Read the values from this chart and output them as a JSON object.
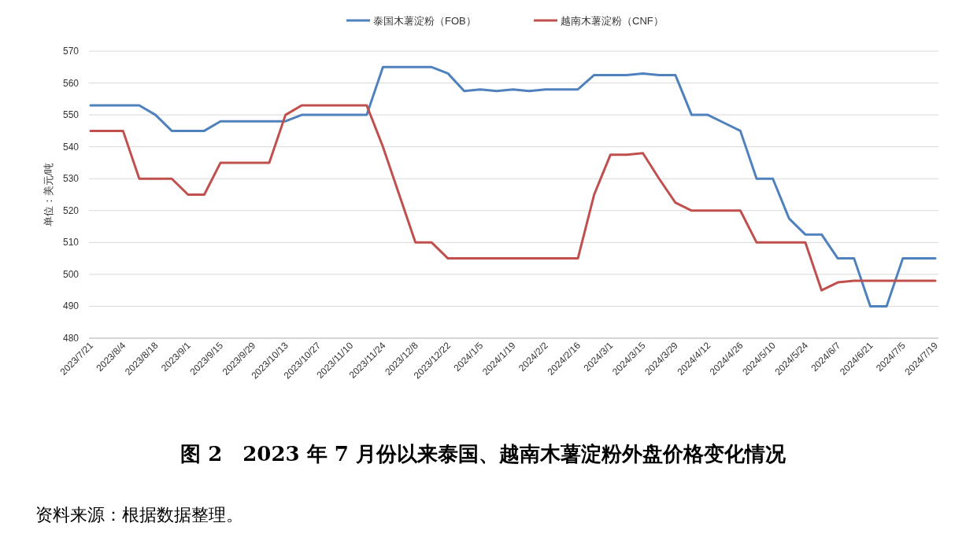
{
  "chart_data": {
    "type": "line",
    "title": "图 2　2023 年 7 月份以来泰国、越南木薯淀粉外盘价格变化情况",
    "ylabel": "单位：美元/吨",
    "annotations": [
      "资料来源：根据数据整理。"
    ],
    "categories": [
      "2023/7/21",
      null,
      "2023/8/4",
      null,
      "2023/8/18",
      null,
      "2023/9/1",
      null,
      "2023/9/15",
      null,
      "2023/9/29",
      null,
      "2023/10/13",
      null,
      "2023/10/27",
      null,
      "2023/11/10",
      null,
      "2023/11/24",
      null,
      "2023/12/8",
      null,
      "2023/12/22",
      null,
      "2024/1/5",
      null,
      "2024/1/19",
      null,
      "2024/2/2",
      null,
      "2024/2/16",
      null,
      "2024/3/1",
      null,
      "2024/3/15",
      null,
      "2024/3/29",
      null,
      "2024/4/12",
      null,
      "2024/4/26",
      null,
      "2024/5/10",
      null,
      "2024/5/24",
      null,
      "2024/6/7",
      null,
      "2024/6/21",
      null,
      "2024/7/5",
      null,
      "2024/7/19"
    ],
    "series": [
      {
        "name": "泰国木薯淀粉（FOB）",
        "color": "#4f81bd",
        "values": [
          553,
          553,
          553,
          553,
          550,
          545,
          545,
          545,
          548,
          548,
          548,
          548,
          548,
          550,
          550,
          550,
          550,
          550,
          565,
          565,
          565,
          565,
          563,
          557.5,
          558,
          557.5,
          558,
          557.5,
          558,
          558,
          558,
          562.5,
          562.5,
          562.5,
          563,
          562.5,
          562.5,
          550,
          550,
          547.5,
          545,
          530,
          530,
          517.5,
          512.5,
          512.5,
          505,
          505,
          490,
          490,
          505,
          505,
          505
        ]
      },
      {
        "name": "越南木薯淀粉（CNF）",
        "color": "#c0504d",
        "values": [
          545,
          545,
          545,
          530,
          530,
          530,
          525,
          525,
          535,
          535,
          535,
          535,
          550,
          553,
          553,
          553,
          553,
          553,
          540,
          525,
          510,
          510,
          505,
          505,
          505,
          505,
          505,
          505,
          505,
          505,
          505,
          525,
          537.5,
          537.5,
          538,
          530,
          522.5,
          520,
          520,
          520,
          520,
          510,
          510,
          510,
          510,
          495,
          497.5,
          498,
          498,
          498,
          498,
          498,
          498
        ]
      }
    ],
    "ylim": [
      480,
      570
    ],
    "yticks": [
      480,
      490,
      500,
      510,
      520,
      530,
      540,
      550,
      560,
      570
    ],
    "grid": "y",
    "legend": "top"
  }
}
